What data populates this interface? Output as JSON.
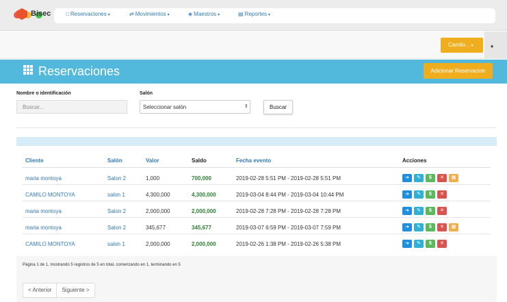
{
  "navbar": {
    "brand": "Bisec",
    "items": [
      {
        "label": "Reservaciones",
        "icon": "calendar-icon"
      },
      {
        "label": "Movimientos",
        "icon": "arrows-icon"
      },
      {
        "label": "Maestros",
        "icon": "tag-icon"
      },
      {
        "label": "Reportes",
        "icon": "bar-chart-icon"
      }
    ],
    "user": "Camilo...",
    "colors": {
      "accent": "#f0ad1e",
      "link": "#337ab7",
      "title_bar": "#53b9dc"
    }
  },
  "page": {
    "title": "Reservaciones",
    "add_button": "Adicionar Reservacion"
  },
  "filters": {
    "name_label": "Nombre o identificación",
    "name_placeholder": "Buscar...",
    "salon_label": "Salón",
    "salon_selected": "Seleccionar salón",
    "search_button": "Buscar"
  },
  "table": {
    "columns": [
      "Cliente",
      "Salón",
      "Valor",
      "Saldo",
      "Fecha evento",
      "Acciones"
    ],
    "rows": [
      {
        "cliente": "maria montoya",
        "salon": "Salon 2",
        "valor": "1,000",
        "saldo": "700,000",
        "fecha": "2019-02-28 5:51 PM - 2019-02-28 5:51 PM",
        "actions": [
          "arrow",
          "edit",
          "money",
          "delete",
          "grid"
        ]
      },
      {
        "cliente": "CAMILO MONTOYA",
        "salon": "salon 1",
        "valor": "4,300,000",
        "saldo": "4,300,000",
        "fecha": "2019-03-04 8:44 PM - 2019-03-04 10:44 PM",
        "actions": [
          "arrow",
          "edit",
          "money",
          "delete"
        ]
      },
      {
        "cliente": "maria montoya",
        "salon": "Salon 2",
        "valor": "2,000,000",
        "saldo": "2,000,000",
        "fecha": "2019-02-28 7:28 PM - 2019-02-28 7:28 PM",
        "actions": [
          "arrow",
          "edit",
          "money",
          "delete"
        ]
      },
      {
        "cliente": "maria montoya",
        "salon": "Salon 2",
        "valor": "345,677",
        "saldo": "345,677",
        "fecha": "2019-03-07 6:59 PM - 2019-03-07 7:59 PM",
        "actions": [
          "arrow",
          "edit",
          "money",
          "delete",
          "grid"
        ]
      },
      {
        "cliente": "CAMILO MONTOYA",
        "salon": "salon 1",
        "valor": "2,000,000",
        "saldo": "2,000,000",
        "fecha": "2019-02-26 1:38 PM - 2019-02-26 5:38 PM",
        "actions": [
          "arrow",
          "edit",
          "money",
          "delete"
        ]
      }
    ]
  },
  "pagination": {
    "summary": "Página 1 de 1, mostrando 5 registros de 5 en total, comenzando en 1, terminando en 5",
    "prev": "< Anterior",
    "next": "Siguiente >"
  }
}
